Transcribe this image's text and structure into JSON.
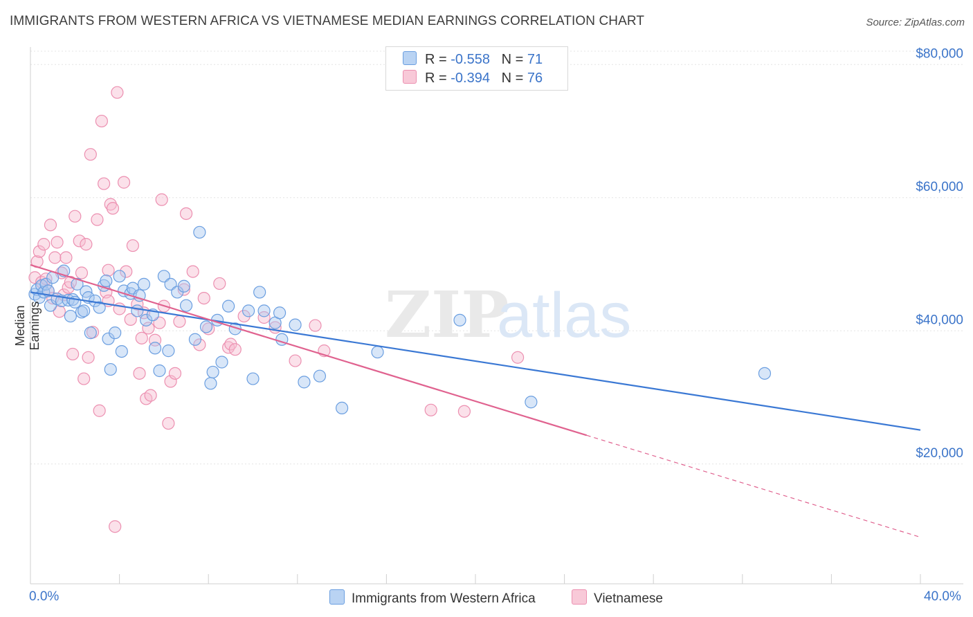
{
  "title": "IMMIGRANTS FROM WESTERN AFRICA VS VIETNAMESE MEDIAN EARNINGS CORRELATION CHART",
  "source": "Source: ZipAtlas.com",
  "watermark": {
    "zip": "ZIP",
    "atlas": "atlas"
  },
  "legend": {
    "r_label": "R =",
    "n_label": "N =",
    "rows": [
      {
        "r": "-0.558",
        "n": "71"
      },
      {
        "r": "-0.394",
        "n": "76"
      }
    ]
  },
  "colors": {
    "blue_fill": "#a9c8f0",
    "blue_stroke": "#6a9ee0",
    "blue_line": "#3a78d4",
    "pink_fill": "#f6bdd0",
    "pink_stroke": "#ec8fb0",
    "pink_line": "#e0628f",
    "axis_text": "#3b74c9"
  },
  "chart_data": {
    "type": "scatter",
    "title": "IMMIGRANTS FROM WESTERN AFRICA VS VIETNAMESE MEDIAN EARNINGS CORRELATION CHART",
    "xlabel": "",
    "ylabel": "Median Earnings",
    "xlim": [
      0,
      40
    ],
    "ylim": [
      2000,
      82000
    ],
    "x_tick_labels": [
      "0.0%",
      "40.0%"
    ],
    "y_ticks": [
      20000,
      40000,
      60000,
      80000
    ],
    "y_tick_labels": [
      "$20,000",
      "$40,000",
      "$60,000",
      "$80,000"
    ],
    "grid": true,
    "legend_position": "top-center",
    "series": [
      {
        "name": "Immigrants from Western Africa",
        "r": -0.558,
        "n": 71,
        "trend": {
          "x0": 0,
          "y0": 45800,
          "x1": 40,
          "y1": 25100
        },
        "points": [
          [
            0.2,
            45500
          ],
          [
            0.3,
            46200
          ],
          [
            0.4,
            45000
          ],
          [
            0.5,
            46800
          ],
          [
            0.6,
            45800
          ],
          [
            0.7,
            47000
          ],
          [
            0.8,
            46000
          ],
          [
            0.9,
            43800
          ],
          [
            1.0,
            48000
          ],
          [
            1.2,
            44800
          ],
          [
            1.4,
            44500
          ],
          [
            1.5,
            49000
          ],
          [
            1.7,
            44600
          ],
          [
            1.8,
            42200
          ],
          [
            1.9,
            44700
          ],
          [
            2.0,
            44300
          ],
          [
            2.1,
            47000
          ],
          [
            2.3,
            42800
          ],
          [
            2.4,
            43000
          ],
          [
            2.5,
            45900
          ],
          [
            2.6,
            45000
          ],
          [
            2.7,
            39700
          ],
          [
            2.9,
            44500
          ],
          [
            3.1,
            43500
          ],
          [
            3.3,
            46800
          ],
          [
            3.4,
            47500
          ],
          [
            3.5,
            38800
          ],
          [
            3.6,
            34200
          ],
          [
            3.8,
            39700
          ],
          [
            4.0,
            48200
          ],
          [
            4.1,
            36900
          ],
          [
            4.2,
            46000
          ],
          [
            4.5,
            45600
          ],
          [
            4.6,
            46400
          ],
          [
            4.8,
            43000
          ],
          [
            4.9,
            45300
          ],
          [
            5.1,
            47000
          ],
          [
            5.2,
            41600
          ],
          [
            5.5,
            42400
          ],
          [
            5.6,
            37400
          ],
          [
            5.8,
            34000
          ],
          [
            6.0,
            48200
          ],
          [
            6.2,
            37000
          ],
          [
            6.3,
            47000
          ],
          [
            6.6,
            45800
          ],
          [
            6.9,
            46700
          ],
          [
            7.0,
            43800
          ],
          [
            7.4,
            38700
          ],
          [
            7.6,
            54800
          ],
          [
            7.9,
            40600
          ],
          [
            8.1,
            32100
          ],
          [
            8.2,
            33800
          ],
          [
            8.4,
            41600
          ],
          [
            8.6,
            35300
          ],
          [
            8.9,
            43700
          ],
          [
            9.2,
            40300
          ],
          [
            9.8,
            43000
          ],
          [
            10.0,
            32800
          ],
          [
            10.3,
            45800
          ],
          [
            10.5,
            43000
          ],
          [
            11.0,
            41200
          ],
          [
            11.2,
            42700
          ],
          [
            11.3,
            38700
          ],
          [
            11.9,
            40900
          ],
          [
            12.3,
            32300
          ],
          [
            13.0,
            33200
          ],
          [
            14.0,
            28400
          ],
          [
            15.6,
            36800
          ],
          [
            19.3,
            41600
          ],
          [
            22.5,
            29300
          ],
          [
            33.0,
            33600
          ]
        ]
      },
      {
        "name": "Vietnamese",
        "r": -0.394,
        "n": 76,
        "trend": {
          "x0": 0,
          "y0": 49900,
          "x1": 25,
          "y1": 24300
        },
        "trend_dashed": {
          "x0": 25,
          "y0": 24300,
          "x1": 40,
          "y1": 9000
        },
        "points": [
          [
            0.2,
            48000
          ],
          [
            0.3,
            50400
          ],
          [
            0.4,
            51900
          ],
          [
            0.5,
            47300
          ],
          [
            0.6,
            53000
          ],
          [
            0.7,
            47800
          ],
          [
            0.8,
            46000
          ],
          [
            0.9,
            55900
          ],
          [
            1.0,
            44900
          ],
          [
            1.1,
            51000
          ],
          [
            1.2,
            53300
          ],
          [
            1.3,
            42900
          ],
          [
            1.4,
            48700
          ],
          [
            1.5,
            45400
          ],
          [
            1.6,
            51000
          ],
          [
            1.7,
            46500
          ],
          [
            1.8,
            47300
          ],
          [
            1.9,
            36500
          ],
          [
            2.0,
            57200
          ],
          [
            2.2,
            53500
          ],
          [
            2.3,
            48700
          ],
          [
            2.4,
            32800
          ],
          [
            2.5,
            53000
          ],
          [
            2.6,
            36000
          ],
          [
            2.7,
            66500
          ],
          [
            2.8,
            39800
          ],
          [
            3.0,
            56700
          ],
          [
            3.1,
            28000
          ],
          [
            3.2,
            71500
          ],
          [
            3.3,
            62100
          ],
          [
            3.4,
            45800
          ],
          [
            3.5,
            44500
          ],
          [
            3.6,
            59000
          ],
          [
            3.7,
            58400
          ],
          [
            3.8,
            10600
          ],
          [
            3.9,
            75800
          ],
          [
            4.0,
            43300
          ],
          [
            4.2,
            62300
          ],
          [
            4.3,
            48900
          ],
          [
            4.5,
            41700
          ],
          [
            4.6,
            52800
          ],
          [
            4.8,
            44000
          ],
          [
            4.9,
            33600
          ],
          [
            5.0,
            38900
          ],
          [
            5.1,
            42700
          ],
          [
            5.2,
            29800
          ],
          [
            5.4,
            30300
          ],
          [
            5.6,
            38600
          ],
          [
            5.8,
            41200
          ],
          [
            5.9,
            59700
          ],
          [
            6.0,
            43700
          ],
          [
            6.2,
            26100
          ],
          [
            6.3,
            32400
          ],
          [
            6.5,
            33600
          ],
          [
            6.7,
            41400
          ],
          [
            7.0,
            57600
          ],
          [
            7.3,
            48900
          ],
          [
            7.6,
            37900
          ],
          [
            7.8,
            44900
          ],
          [
            8.0,
            40300
          ],
          [
            8.5,
            47100
          ],
          [
            8.9,
            37500
          ],
          [
            9.0,
            38000
          ],
          [
            9.2,
            37200
          ],
          [
            10.5,
            42000
          ],
          [
            11.0,
            40500
          ],
          [
            11.9,
            35500
          ],
          [
            13.2,
            37000
          ],
          [
            18.0,
            28100
          ],
          [
            19.5,
            27900
          ],
          [
            21.9,
            36000
          ],
          [
            12.8,
            40800
          ],
          [
            9.6,
            42200
          ],
          [
            6.9,
            46200
          ],
          [
            5.3,
            40400
          ],
          [
            3.5,
            49100
          ]
        ]
      }
    ]
  }
}
